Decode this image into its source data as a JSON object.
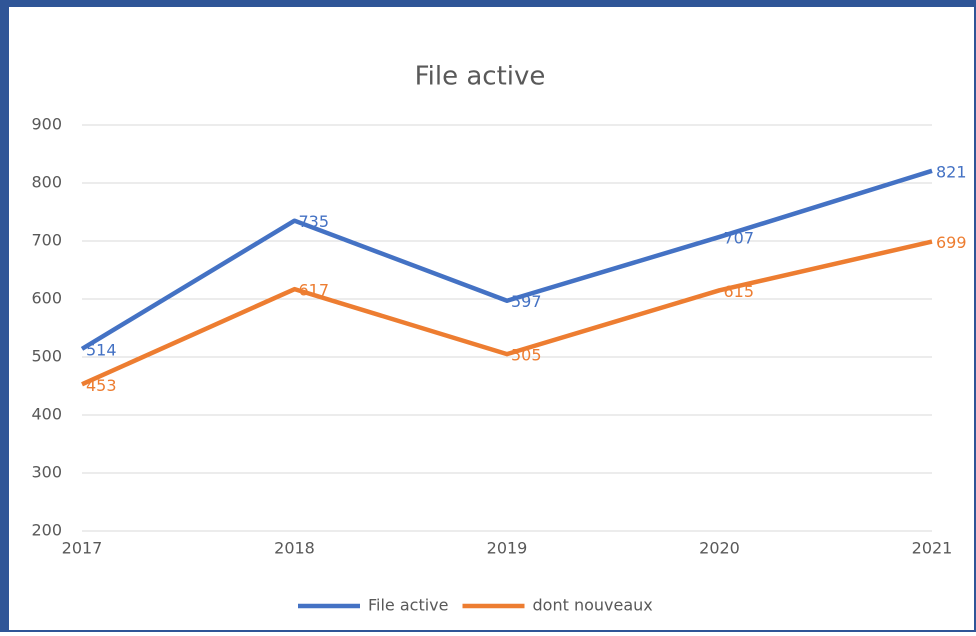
{
  "chart_data": {
    "type": "line",
    "title": "File active",
    "categories": [
      "2017",
      "2018",
      "2019",
      "2020",
      "2021"
    ],
    "series": [
      {
        "name": "File active",
        "color": "#4472c4",
        "values": [
          514,
          735,
          597,
          707,
          821
        ]
      },
      {
        "name": "dont nouveaux",
        "color": "#ed7d31",
        "values": [
          453,
          617,
          505,
          615,
          699
        ]
      }
    ],
    "ylim": [
      200,
      900
    ],
    "yticks": [
      200,
      300,
      400,
      500,
      600,
      700,
      800,
      900
    ],
    "grid": true,
    "legend": "bottom"
  }
}
